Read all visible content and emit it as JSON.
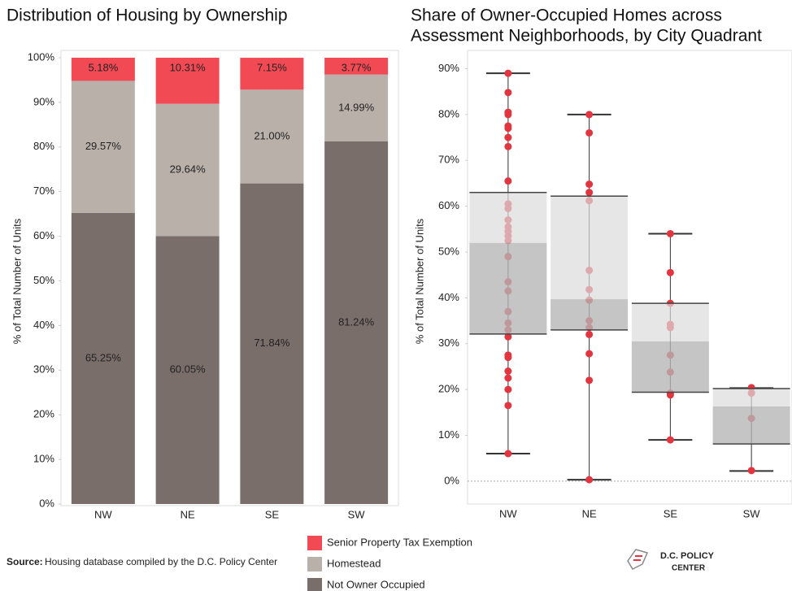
{
  "chart_data": [
    {
      "type": "stacked-bar",
      "title": "Distribution of Housing by Ownership",
      "y_label": "% of Total Number of Units",
      "categories": [
        "NW",
        "NE",
        "SE",
        "SW"
      ],
      "series": [
        {
          "name": "Not Owner Occupied",
          "color": "#7a6e6b",
          "values": [
            65.25,
            60.05,
            71.84,
            81.24
          ],
          "value_labels": [
            "65.25%",
            "60.05%",
            "71.84%",
            "81.24%"
          ]
        },
        {
          "name": "Homestead",
          "color": "#bab0aa",
          "values": [
            29.57,
            29.64,
            21.0,
            14.99
          ],
          "value_labels": [
            "29.57%",
            "29.64%",
            "21.00%",
            "14.99%"
          ]
        },
        {
          "name": "Senior Property Tax Exemption",
          "color": "#f24a54",
          "values": [
            5.18,
            10.31,
            7.15,
            3.77
          ],
          "value_labels": [
            "5.18%",
            "10.31%",
            "7.15%",
            "3.77%"
          ]
        }
      ],
      "ylim": [
        0,
        100
      ],
      "yticks": [
        {
          "value": 0,
          "label": "0%"
        },
        {
          "value": 10,
          "label": "10%"
        },
        {
          "value": 20,
          "label": "20%"
        },
        {
          "value": 30,
          "label": "30%"
        },
        {
          "value": 40,
          "label": "40%"
        },
        {
          "value": 50,
          "label": "50%"
        },
        {
          "value": 60,
          "label": "60%"
        },
        {
          "value": 70,
          "label": "70%"
        },
        {
          "value": 80,
          "label": "80%"
        },
        {
          "value": 90,
          "label": "90%"
        },
        {
          "value": 100,
          "label": "100%"
        }
      ],
      "legend": "bottom"
    },
    {
      "type": "box",
      "title": [
        "Share of Owner-Occupied Homes across",
        "Assessment Neighborhoods, by City Quadrant"
      ],
      "y_label": "% of Total Number of Units",
      "categories": [
        "NW",
        "NE",
        "SE",
        "SW"
      ],
      "boxes": [
        {
          "min": 6,
          "q1": 32.1,
          "median": 52,
          "q3": 63,
          "max": 89,
          "points": [
            89,
            84.8,
            80.5,
            80,
            77.5,
            77,
            75,
            73,
            65.5,
            60.5,
            59.5,
            57,
            55.5,
            54.5,
            53.5,
            52.5,
            49,
            43.5,
            41.5,
            37,
            34.5,
            33,
            31.5,
            27.5,
            27,
            24,
            22.5,
            20,
            16.5,
            6
          ]
        },
        {
          "min": 0.3,
          "q1": 33,
          "median": 39.7,
          "q3": 62.2,
          "max": 80,
          "points": [
            80,
            76,
            64.8,
            63,
            61.2,
            46,
            41.8,
            39.5,
            35,
            33.5,
            32,
            27.8,
            22,
            0.3
          ]
        },
        {
          "min": 9,
          "q1": 19.4,
          "median": 30.5,
          "q3": 38.8,
          "max": 54,
          "points": [
            54,
            45.5,
            38.8,
            34.2,
            33.5,
            27.5,
            23.8,
            19.2,
            18.8,
            9
          ]
        },
        {
          "min": 2.2,
          "q1": 8.1,
          "median": 16.3,
          "q3": 20.2,
          "max": 20.3,
          "points": [
            20.4,
            19.2,
            13.7,
            2.3
          ]
        }
      ],
      "point_color": "#e2353f",
      "ylim": [
        -5,
        94
      ],
      "yticks": [
        {
          "value": 0,
          "label": "0%"
        },
        {
          "value": 10,
          "label": "10%"
        },
        {
          "value": 20,
          "label": "20%"
        },
        {
          "value": 30,
          "label": "30%"
        },
        {
          "value": 40,
          "label": "40%"
        },
        {
          "value": 50,
          "label": "50%"
        },
        {
          "value": 60,
          "label": "60%"
        },
        {
          "value": 70,
          "label": "70%"
        },
        {
          "value": 80,
          "label": "80%"
        },
        {
          "value": 90,
          "label": "90%"
        }
      ]
    }
  ],
  "footer": {
    "source_label": "Source:",
    "source": "Housing database compiled by the D.C. Policy Center",
    "logo": [
      "D.C. POLICY",
      "CENTER"
    ]
  }
}
